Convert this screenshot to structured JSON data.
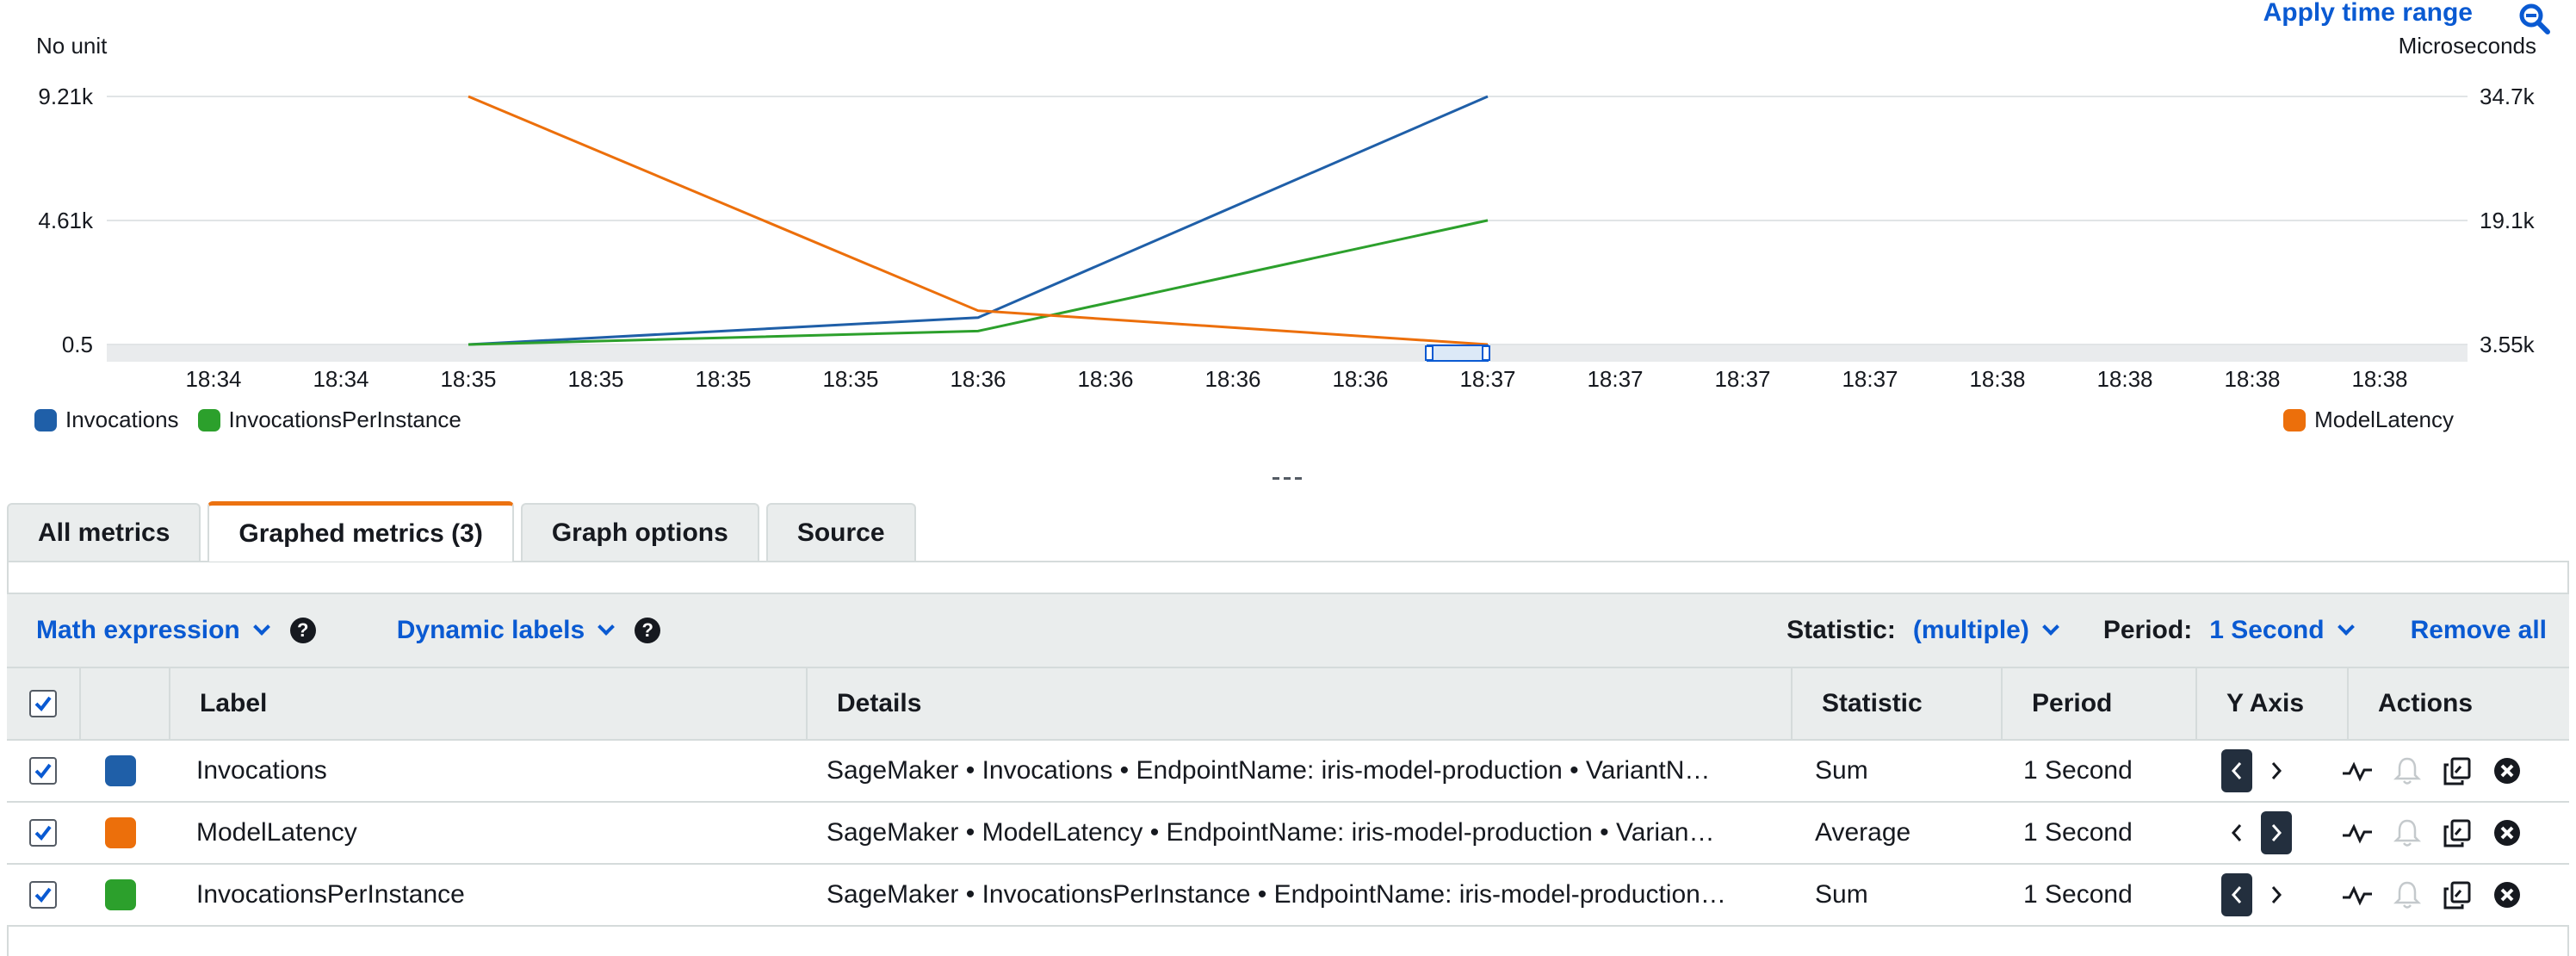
{
  "chart": {
    "apply_time_range": "Apply time range",
    "left_unit": "No unit",
    "right_unit": "Microseconds",
    "left_ticks": [
      "9.21k",
      "4.61k",
      "0.5"
    ],
    "right_ticks": [
      "34.7k",
      "19.1k",
      "3.55k"
    ],
    "x_ticks": [
      "18:34",
      "18:34",
      "18:35",
      "18:35",
      "18:35",
      "18:35",
      "18:36",
      "18:36",
      "18:36",
      "18:36",
      "18:37",
      "18:37",
      "18:37",
      "18:37",
      "18:38",
      "18:38",
      "18:38",
      "18:38"
    ],
    "legend_left": [
      {
        "label": "Invocations",
        "color": "#1f5fa8"
      },
      {
        "label": "InvocationsPerInstance",
        "color": "#2ca02c"
      }
    ],
    "legend_right": [
      {
        "label": "ModelLatency",
        "color": "#ec6f0b"
      }
    ]
  },
  "chart_data": {
    "type": "line",
    "x": [
      "18:35",
      "18:36",
      "18:37"
    ],
    "series": [
      {
        "name": "Invocations",
        "axis": "left",
        "color": "#1f5fa8",
        "values": [
          0.5,
          1000,
          9210
        ]
      },
      {
        "name": "InvocationsPerInstance",
        "axis": "left",
        "color": "#2ca02c",
        "values": [
          0.5,
          500,
          4610
        ]
      },
      {
        "name": "ModelLatency",
        "axis": "right",
        "color": "#ec6f0b",
        "values": [
          34700,
          7800,
          3550
        ]
      }
    ],
    "ylabel_left": "No unit",
    "ylabel_right": "Microseconds",
    "ylim_left": [
      0.5,
      9210
    ],
    "ylim_right": [
      3550,
      34700
    ],
    "grid": true,
    "legend": "bottom"
  },
  "tabs": [
    {
      "label": "All metrics",
      "active": false
    },
    {
      "label": "Graphed metrics (3)",
      "active": true
    },
    {
      "label": "Graph options",
      "active": false
    },
    {
      "label": "Source",
      "active": false
    }
  ],
  "toolbar": {
    "math_expression": "Math expression",
    "dynamic_labels": "Dynamic labels",
    "statistic_label": "Statistic:",
    "statistic_value": "(multiple)",
    "period_label": "Period:",
    "period_value": "1 Second",
    "remove_all": "Remove all"
  },
  "table": {
    "headers": {
      "label": "Label",
      "details": "Details",
      "statistic": "Statistic",
      "period": "Period",
      "y_axis": "Y Axis",
      "actions": "Actions"
    },
    "rows": [
      {
        "label": "Invocations",
        "color": "#1f5fa8",
        "details": "SageMaker • Invocations • EndpointName: iris-model-production • VariantN…",
        "statistic": "Sum",
        "period": "1 Second",
        "y_axis": "left"
      },
      {
        "label": "ModelLatency",
        "color": "#ec6f0b",
        "details": "SageMaker • ModelLatency • EndpointName: iris-model-production • Varian…",
        "statistic": "Average",
        "period": "1 Second",
        "y_axis": "right"
      },
      {
        "label": "InvocationsPerInstance",
        "color": "#2ca02c",
        "details": "SageMaker • InvocationsPerInstance • EndpointName: iris-model-production…",
        "statistic": "Sum",
        "period": "1 Second",
        "y_axis": "left"
      }
    ]
  }
}
